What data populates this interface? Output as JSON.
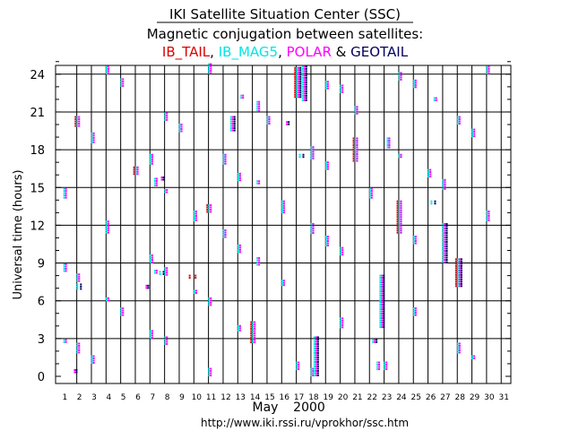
{
  "chart_data": {
    "type": "scatter",
    "title": "IKI Satellite Situation Center (SSC)",
    "subtitle": "Magnetic conjugation between satellites:",
    "ylabel": "Universal time (hours)",
    "xlabel_month": "May",
    "xlabel_year": "2000",
    "url": "http://www.iki.rssi.ru/vprokhor/ssc.htm",
    "connector": "&",
    "xlim": [
      1,
      32
    ],
    "ylim": [
      0,
      25
    ],
    "x_ticks": [
      1,
      2,
      3,
      4,
      5,
      6,
      7,
      8,
      9,
      10,
      11,
      12,
      13,
      14,
      15,
      16,
      17,
      18,
      19,
      20,
      21,
      22,
      23,
      24,
      25,
      26,
      27,
      28,
      29,
      30,
      31
    ],
    "y_ticks": [
      0,
      3,
      6,
      9,
      12,
      15,
      18,
      21,
      24
    ],
    "legend": [
      {
        "name": "IB_TAIL",
        "sep": ",",
        "color": "#dd0000"
      },
      {
        "name": "IB_MAG5",
        "sep": ",",
        "color": "#00e5e5"
      },
      {
        "name": "POLAR",
        "sep": "",
        "color": "#ff00ff"
      },
      {
        "name": "GEOTAIL",
        "sep": "",
        "color": "#00005a"
      }
    ],
    "events": [
      {
        "x": 1.2,
        "y0": 14.2,
        "y1": 14.9,
        "s": [
          "mag",
          "pol"
        ]
      },
      {
        "x": 1.2,
        "y0": 8.4,
        "y1": 8.9,
        "s": [
          "mag",
          "pol"
        ]
      },
      {
        "x": 1.2,
        "y0": 2.6,
        "y1": 2.9,
        "s": [
          "mag",
          "pol"
        ]
      },
      {
        "x": 1.8,
        "y0": 0.3,
        "y1": 0.5,
        "s": [
          "pol",
          "geo"
        ]
      },
      {
        "x": 2.1,
        "y0": 19.9,
        "y1": 20.6,
        "s": [
          "tail",
          "mag",
          "pol"
        ]
      },
      {
        "x": 2.1,
        "y0": 7.6,
        "y1": 8.1,
        "s": [
          "mag",
          "pol"
        ]
      },
      {
        "x": 2.1,
        "y0": 6.9,
        "y1": 7.3,
        "s": [
          "mag",
          "geo"
        ]
      },
      {
        "x": 2.1,
        "y0": 1.9,
        "y1": 2.6,
        "s": [
          "mag",
          "pol"
        ]
      },
      {
        "x": 3.1,
        "y0": 18.6,
        "y1": 19.3,
        "s": [
          "mag",
          "pol"
        ]
      },
      {
        "x": 3.1,
        "y0": 1.1,
        "y1": 1.6,
        "s": [
          "mag",
          "pol"
        ]
      },
      {
        "x": 4.1,
        "y0": 24.1,
        "y1": 24.6,
        "s": [
          "mag",
          "pol"
        ]
      },
      {
        "x": 4.1,
        "y0": 11.4,
        "y1": 12.3,
        "s": [
          "mag",
          "pol"
        ]
      },
      {
        "x": 4.1,
        "y0": 5.9,
        "y1": 6.2,
        "s": [
          "mag",
          "pol"
        ]
      },
      {
        "x": 5.1,
        "y0": 23.1,
        "y1": 23.6,
        "s": [
          "mag",
          "pol"
        ]
      },
      {
        "x": 5.1,
        "y0": 4.9,
        "y1": 5.4,
        "s": [
          "mag",
          "pol"
        ]
      },
      {
        "x": 6.1,
        "y0": 16.1,
        "y1": 16.6,
        "s": [
          "tail",
          "mag",
          "pol"
        ]
      },
      {
        "x": 6.7,
        "y0": 6.9,
        "y1": 7.2,
        "s": [
          "pol",
          "geo"
        ]
      },
      {
        "x": 7.1,
        "y0": 16.9,
        "y1": 17.6,
        "s": [
          "mag",
          "pol"
        ]
      },
      {
        "x": 7.1,
        "y0": 9.1,
        "y1": 9.6,
        "s": [
          "mag",
          "pol"
        ]
      },
      {
        "x": 7.1,
        "y0": 3.1,
        "y1": 3.6,
        "s": [
          "mag",
          "pol"
        ]
      },
      {
        "x": 7.4,
        "y0": 15.1,
        "y1": 15.7,
        "s": [
          "mag",
          "pol"
        ]
      },
      {
        "x": 7.4,
        "y0": 8.1,
        "y1": 8.4,
        "s": [
          "mag",
          "pol"
        ]
      },
      {
        "x": 7.75,
        "y0": 15.5,
        "y1": 15.8,
        "s": [
          "pol",
          "geo"
        ]
      },
      {
        "x": 7.75,
        "y0": 8.1,
        "y1": 8.3,
        "s": [
          "mag",
          "geo"
        ]
      },
      {
        "x": 8.1,
        "y0": 20.3,
        "y1": 20.9,
        "s": [
          "mag",
          "pol"
        ]
      },
      {
        "x": 8.1,
        "y0": 14.6,
        "y1": 14.8,
        "s": [
          "mag",
          "pol"
        ]
      },
      {
        "x": 8.1,
        "y0": 8.1,
        "y1": 8.6,
        "s": [
          "mag",
          "pol"
        ]
      },
      {
        "x": 8.1,
        "y0": 2.6,
        "y1": 3.1,
        "s": [
          "mag",
          "pol"
        ]
      },
      {
        "x": 9.1,
        "y0": 19.4,
        "y1": 20.0,
        "s": [
          "mag",
          "pol"
        ]
      },
      {
        "x": 9.9,
        "y0": 7.7,
        "y1": 8.0,
        "s": [
          "tail"
        ]
      },
      {
        "x": 10.3,
        "y0": 7.7,
        "y1": 8.0,
        "s": [
          "tail"
        ]
      },
      {
        "x": 10.1,
        "y0": 12.4,
        "y1": 13.1,
        "s": [
          "mag",
          "pol"
        ]
      },
      {
        "x": 10.1,
        "y0": 6.6,
        "y1": 6.8,
        "s": [
          "mag",
          "pol"
        ]
      },
      {
        "x": 11.1,
        "y0": 24.1,
        "y1": 24.8,
        "s": [
          "mag",
          "pol"
        ]
      },
      {
        "x": 11.1,
        "y0": 13.1,
        "y1": 13.6,
        "s": [
          "tail",
          "mag",
          "pol"
        ]
      },
      {
        "x": 11.1,
        "y0": 5.6,
        "y1": 6.2,
        "s": [
          "mag",
          "pol"
        ]
      },
      {
        "x": 11.1,
        "y0": 0.1,
        "y1": 0.6,
        "s": [
          "mag",
          "pol"
        ]
      },
      {
        "x": 12.1,
        "y0": 16.9,
        "y1": 17.6,
        "s": [
          "mag",
          "pol"
        ]
      },
      {
        "x": 12.1,
        "y0": 11.1,
        "y1": 11.6,
        "s": [
          "mag",
          "pol"
        ]
      },
      {
        "x": 12.6,
        "y0": 19.4,
        "y1": 20.6,
        "s": [
          "mag",
          "pol",
          "geo"
        ]
      },
      {
        "x": 13.1,
        "y0": 15.6,
        "y1": 16.1,
        "s": [
          "mag",
          "pol"
        ]
      },
      {
        "x": 13.1,
        "y0": 9.9,
        "y1": 10.4,
        "s": [
          "mag",
          "pol"
        ]
      },
      {
        "x": 13.1,
        "y0": 3.6,
        "y1": 4.0,
        "s": [
          "mag",
          "pol"
        ]
      },
      {
        "x": 13.3,
        "y0": 22.1,
        "y1": 22.3,
        "s": [
          "mag",
          "pol"
        ]
      },
      {
        "x": 14.1,
        "y0": 2.6,
        "y1": 4.3,
        "s": [
          "tail",
          "mag",
          "pol"
        ]
      },
      {
        "x": 14.4,
        "y0": 21.1,
        "y1": 21.8,
        "s": [
          "mag",
          "pol"
        ]
      },
      {
        "x": 14.4,
        "y0": 15.2,
        "y1": 15.5,
        "s": [
          "mag",
          "pol"
        ]
      },
      {
        "x": 14.4,
        "y0": 8.9,
        "y1": 9.4,
        "s": [
          "mag",
          "pol"
        ]
      },
      {
        "x": 15.1,
        "y0": 20.1,
        "y1": 20.6,
        "s": [
          "mag",
          "pol"
        ]
      },
      {
        "x": 16.1,
        "y0": 12.9,
        "y1": 13.9,
        "s": [
          "mag",
          "pol"
        ]
      },
      {
        "x": 16.1,
        "y0": 7.2,
        "y1": 7.6,
        "s": [
          "mag",
          "pol"
        ]
      },
      {
        "x": 16.3,
        "y0": 20.0,
        "y1": 20.2,
        "s": [
          "pol",
          "geo"
        ]
      },
      {
        "x": 17.1,
        "y0": 22.2,
        "y1": 24.5,
        "s": [
          "tail",
          "mag",
          "pol",
          "geo"
        ]
      },
      {
        "x": 17.3,
        "y0": 17.3,
        "y1": 17.6,
        "s": [
          "mag",
          "geo"
        ]
      },
      {
        "x": 17.1,
        "y0": 0.6,
        "y1": 1.1,
        "s": [
          "mag",
          "pol"
        ]
      },
      {
        "x": 17.5,
        "y0": 21.9,
        "y1": 24.6,
        "s": [
          "mag",
          "pol",
          "geo"
        ]
      },
      {
        "x": 18.1,
        "y0": 17.3,
        "y1": 18.2,
        "s": [
          "mag",
          "pol"
        ]
      },
      {
        "x": 18.1,
        "y0": 11.4,
        "y1": 12.1,
        "s": [
          "mag",
          "pol"
        ]
      },
      {
        "x": 18.1,
        "y0": 0.0,
        "y1": 0.6,
        "s": [
          "mag",
          "pol"
        ]
      },
      {
        "x": 18.3,
        "y0": 0.0,
        "y1": 3.1,
        "s": [
          "mag",
          "pol",
          "geo"
        ]
      },
      {
        "x": 19.1,
        "y0": 10.4,
        "y1": 11.1,
        "s": [
          "mag",
          "pol"
        ]
      },
      {
        "x": 19.1,
        "y0": 16.5,
        "y1": 17.0,
        "s": [
          "mag",
          "pol"
        ]
      },
      {
        "x": 19.1,
        "y0": 22.9,
        "y1": 23.4,
        "s": [
          "mag",
          "pol"
        ]
      },
      {
        "x": 20.1,
        "y0": 9.6,
        "y1": 10.2,
        "s": [
          "mag",
          "pol"
        ]
      },
      {
        "x": 20.1,
        "y0": 3.9,
        "y1": 4.6,
        "s": [
          "mag",
          "pol"
        ]
      },
      {
        "x": 20.1,
        "y0": 22.6,
        "y1": 23.1,
        "s": [
          "mag",
          "pol"
        ]
      },
      {
        "x": 21.1,
        "y0": 17.1,
        "y1": 18.9,
        "s": [
          "tail",
          "mag",
          "pol"
        ]
      },
      {
        "x": 21.1,
        "y0": 20.9,
        "y1": 21.4,
        "s": [
          "mag",
          "pol"
        ]
      },
      {
        "x": 22.1,
        "y0": 14.1,
        "y1": 14.9,
        "s": [
          "mag",
          "pol"
        ]
      },
      {
        "x": 22.3,
        "y0": 2.6,
        "y1": 2.9,
        "s": [
          "mag",
          "pol",
          "geo"
        ]
      },
      {
        "x": 22.6,
        "y0": 0.6,
        "y1": 1.1,
        "s": [
          "mag",
          "pol"
        ]
      },
      {
        "x": 22.8,
        "y0": 3.9,
        "y1": 8.0,
        "s": [
          "mag",
          "pol",
          "geo"
        ]
      },
      {
        "x": 23.1,
        "y0": 0.6,
        "y1": 1.1,
        "s": [
          "mag",
          "pol"
        ]
      },
      {
        "x": 23.3,
        "y0": 18.1,
        "y1": 18.9,
        "s": [
          "mag",
          "pol"
        ]
      },
      {
        "x": 24.1,
        "y0": 11.4,
        "y1": 13.9,
        "s": [
          "tail",
          "mag",
          "pol"
        ]
      },
      {
        "x": 24.1,
        "y0": 17.4,
        "y1": 17.6,
        "s": [
          "mag",
          "pol"
        ]
      },
      {
        "x": 24.1,
        "y0": 23.6,
        "y1": 24.1,
        "s": [
          "mag",
          "pol"
        ]
      },
      {
        "x": 25.1,
        "y0": 10.6,
        "y1": 11.1,
        "s": [
          "mag",
          "pol"
        ]
      },
      {
        "x": 25.1,
        "y0": 4.9,
        "y1": 5.4,
        "s": [
          "mag",
          "pol"
        ]
      },
      {
        "x": 25.1,
        "y0": 22.9,
        "y1": 23.5,
        "s": [
          "mag",
          "pol"
        ]
      },
      {
        "x": 26.1,
        "y0": 15.9,
        "y1": 16.4,
        "s": [
          "mag",
          "pol"
        ]
      },
      {
        "x": 26.3,
        "y0": 13.7,
        "y1": 13.9,
        "s": [
          "mag",
          "geo"
        ]
      },
      {
        "x": 26.5,
        "y0": 21.9,
        "y1": 22.1,
        "s": [
          "mag",
          "pol"
        ]
      },
      {
        "x": 27.1,
        "y0": 14.9,
        "y1": 15.6,
        "s": [
          "mag",
          "pol"
        ]
      },
      {
        "x": 27.1,
        "y0": 9.1,
        "y1": 12.1,
        "s": [
          "mag",
          "pol",
          "geo"
        ]
      },
      {
        "x": 28.1,
        "y0": 7.1,
        "y1": 9.3,
        "s": [
          "tail",
          "mag",
          "pol",
          "geo"
        ]
      },
      {
        "x": 28.1,
        "y0": 1.9,
        "y1": 2.6,
        "s": [
          "mag",
          "pol"
        ]
      },
      {
        "x": 28.1,
        "y0": 20.1,
        "y1": 20.6,
        "s": [
          "mag",
          "pol"
        ]
      },
      {
        "x": 29.1,
        "y0": 19.1,
        "y1": 19.6,
        "s": [
          "mag",
          "pol"
        ]
      },
      {
        "x": 29.1,
        "y0": 1.4,
        "y1": 1.6,
        "s": [
          "mag",
          "pol"
        ]
      },
      {
        "x": 30.1,
        "y0": 12.4,
        "y1": 13.1,
        "s": [
          "mag",
          "pol"
        ]
      },
      {
        "x": 30.1,
        "y0": 24.1,
        "y1": 24.6,
        "s": [
          "mag",
          "pol"
        ]
      }
    ]
  }
}
